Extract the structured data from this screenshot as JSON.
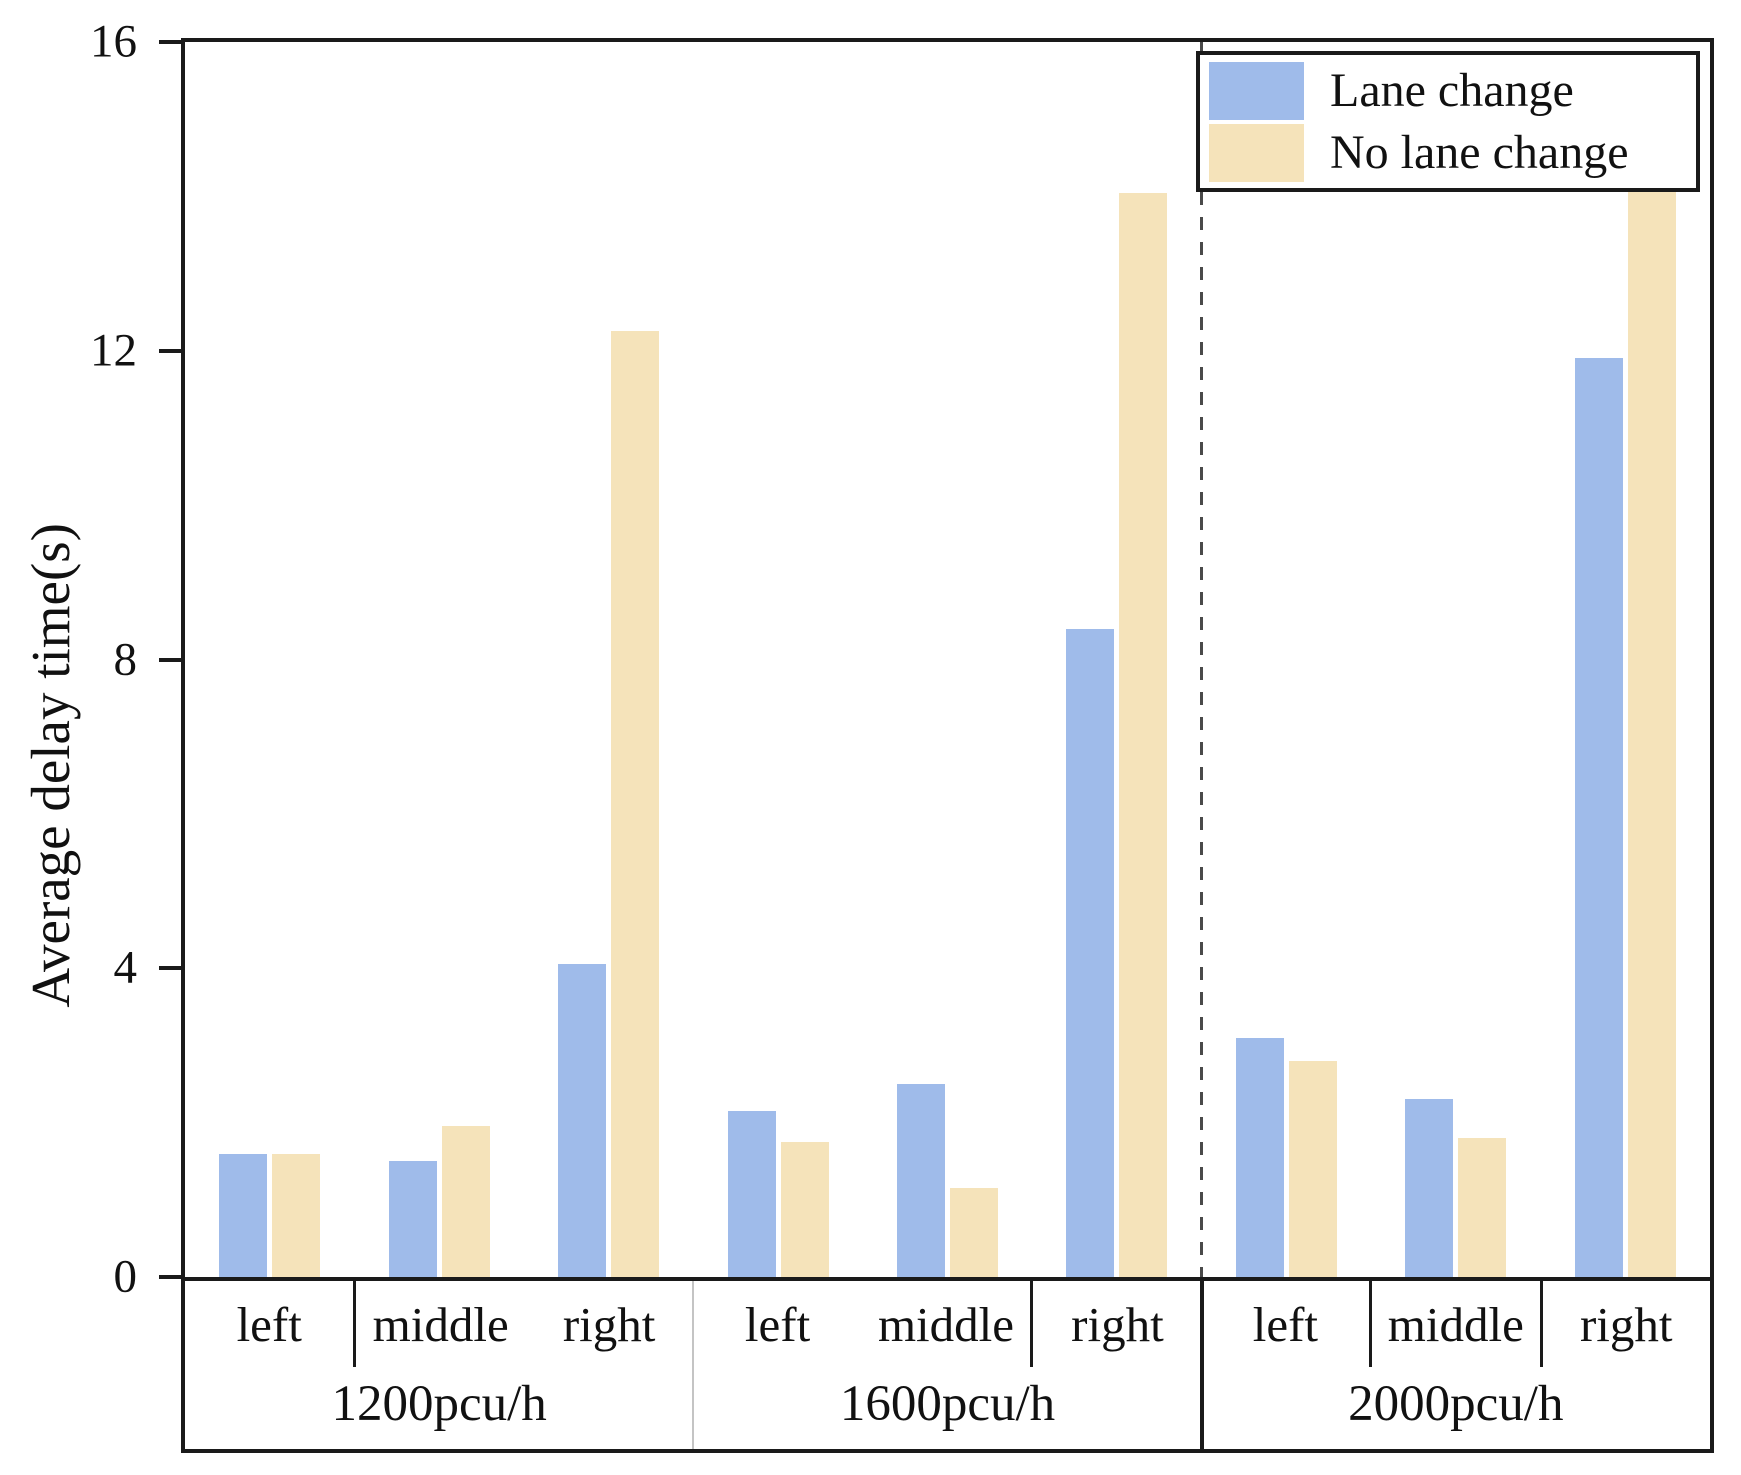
{
  "chart_data": {
    "type": "bar",
    "title": "",
    "xlabel": "",
    "ylabel": "Average delay time(s)",
    "ylim": [
      0,
      16
    ],
    "yticks": [
      0,
      4,
      8,
      12,
      16
    ],
    "grid": false,
    "legend_position": "top-right",
    "groups": [
      "1200pcu/h",
      "1600pcu/h",
      "2000pcu/h"
    ],
    "lanes": [
      "left",
      "middle",
      "right"
    ],
    "series": [
      {
        "name": "Lane change",
        "color": "#9fbbea",
        "values": [
          [
            1.6,
            1.5,
            4.05
          ],
          [
            2.15,
            2.5,
            8.4
          ],
          [
            3.1,
            2.3,
            11.9
          ]
        ]
      },
      {
        "name": "No lane change",
        "color": "#f5e3ba",
        "values": [
          [
            1.6,
            1.95,
            12.25
          ],
          [
            1.75,
            1.15,
            14.05
          ],
          [
            2.8,
            1.8,
            14.2
          ]
        ]
      }
    ],
    "dashed_separator_before_group": "2000pcu/h",
    "lane_divider_after_cell": [
      [
        1
      ],
      [
        2
      ],
      [
        1,
        2
      ]
    ],
    "axis_color": "#1a1a1a"
  }
}
